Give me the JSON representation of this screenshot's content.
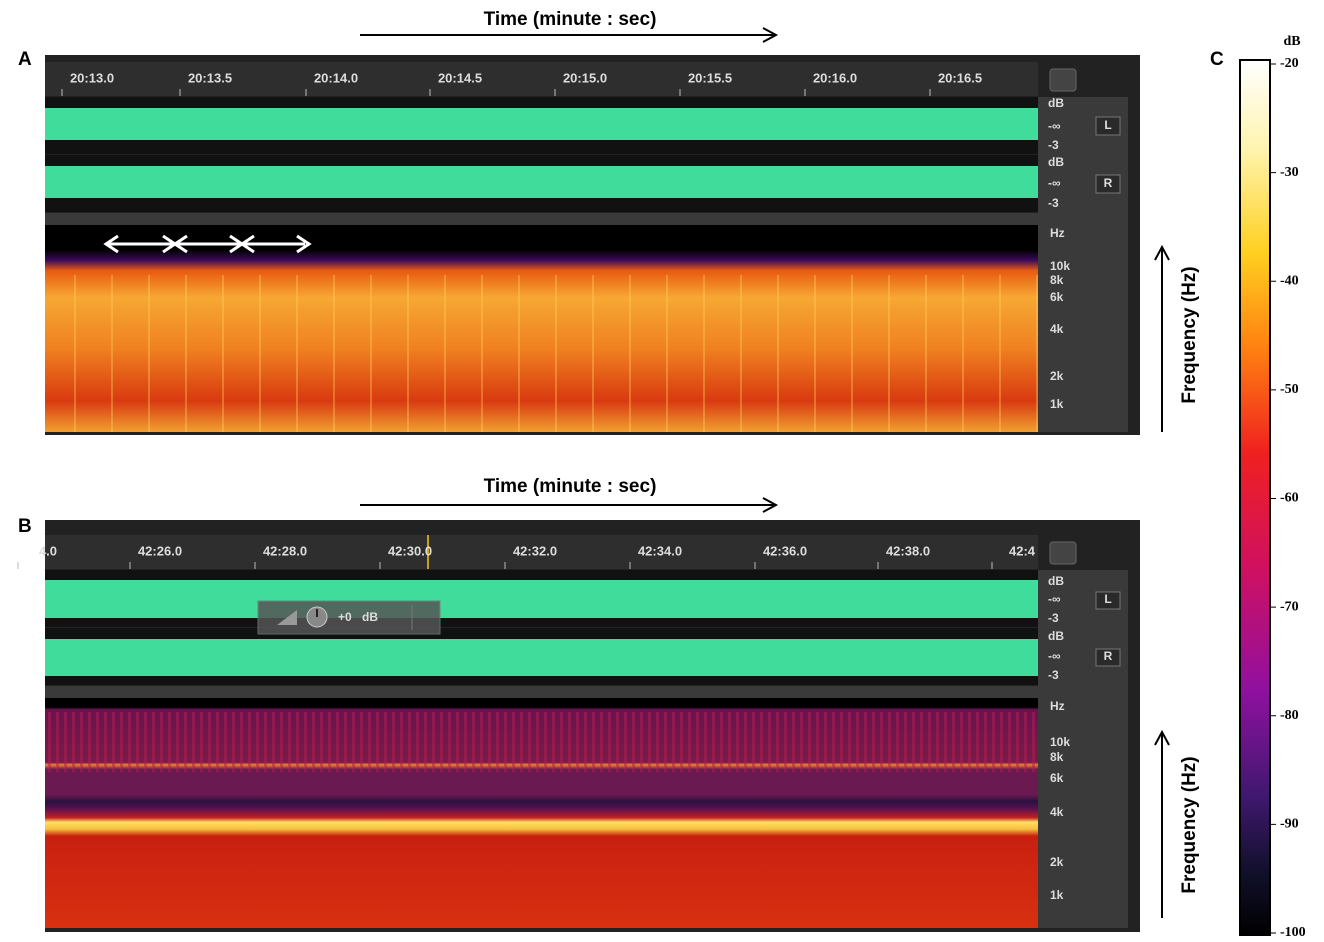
{
  "panels": [
    {
      "label": "A",
      "time_label": "Time (minute : sec)",
      "time_ticks": [
        "20:13.0",
        "20:13.5",
        "20:14.0",
        "20:14.5",
        "20:15.0",
        "20:15.5",
        "20:16.0",
        "20:16.5"
      ],
      "channels": [
        {
          "db": "dB",
          "inf": "-∞",
          "min": "-3",
          "name": "L"
        },
        {
          "db": "dB",
          "inf": "-∞",
          "min": "-3",
          "name": "R"
        }
      ],
      "freq_unit": "Hz",
      "freq_ticks": [
        "10k",
        "8k",
        "6k",
        "4k",
        "2k",
        "1k"
      ],
      "freq_label": "Frequency (Hz)"
    },
    {
      "label": "B",
      "time_label": "Time (minute : sec)",
      "time_ticks": [
        "4.0",
        "42:26.0",
        "42:28.0",
        "42:30.0",
        "42:32.0",
        "42:34.0",
        "42:36.0",
        "42:38.0",
        "42:4"
      ],
      "channels": [
        {
          "db": "dB",
          "inf": "-∞",
          "min": "-3",
          "name": "L"
        },
        {
          "db": "dB",
          "inf": "-∞",
          "min": "-3",
          "name": "R"
        }
      ],
      "gain": {
        "value": "+0",
        "unit": "dB"
      },
      "freq_unit": "Hz",
      "freq_ticks": [
        "10k",
        "8k",
        "6k",
        "4k",
        "2k",
        "1k"
      ],
      "freq_label": "Frequency (Hz)"
    }
  ],
  "colorbar": {
    "label": "C",
    "unit": "dB",
    "ticks": [
      -20,
      -30,
      -40,
      -50,
      -60,
      -70,
      -80,
      -90,
      -100
    ]
  }
}
